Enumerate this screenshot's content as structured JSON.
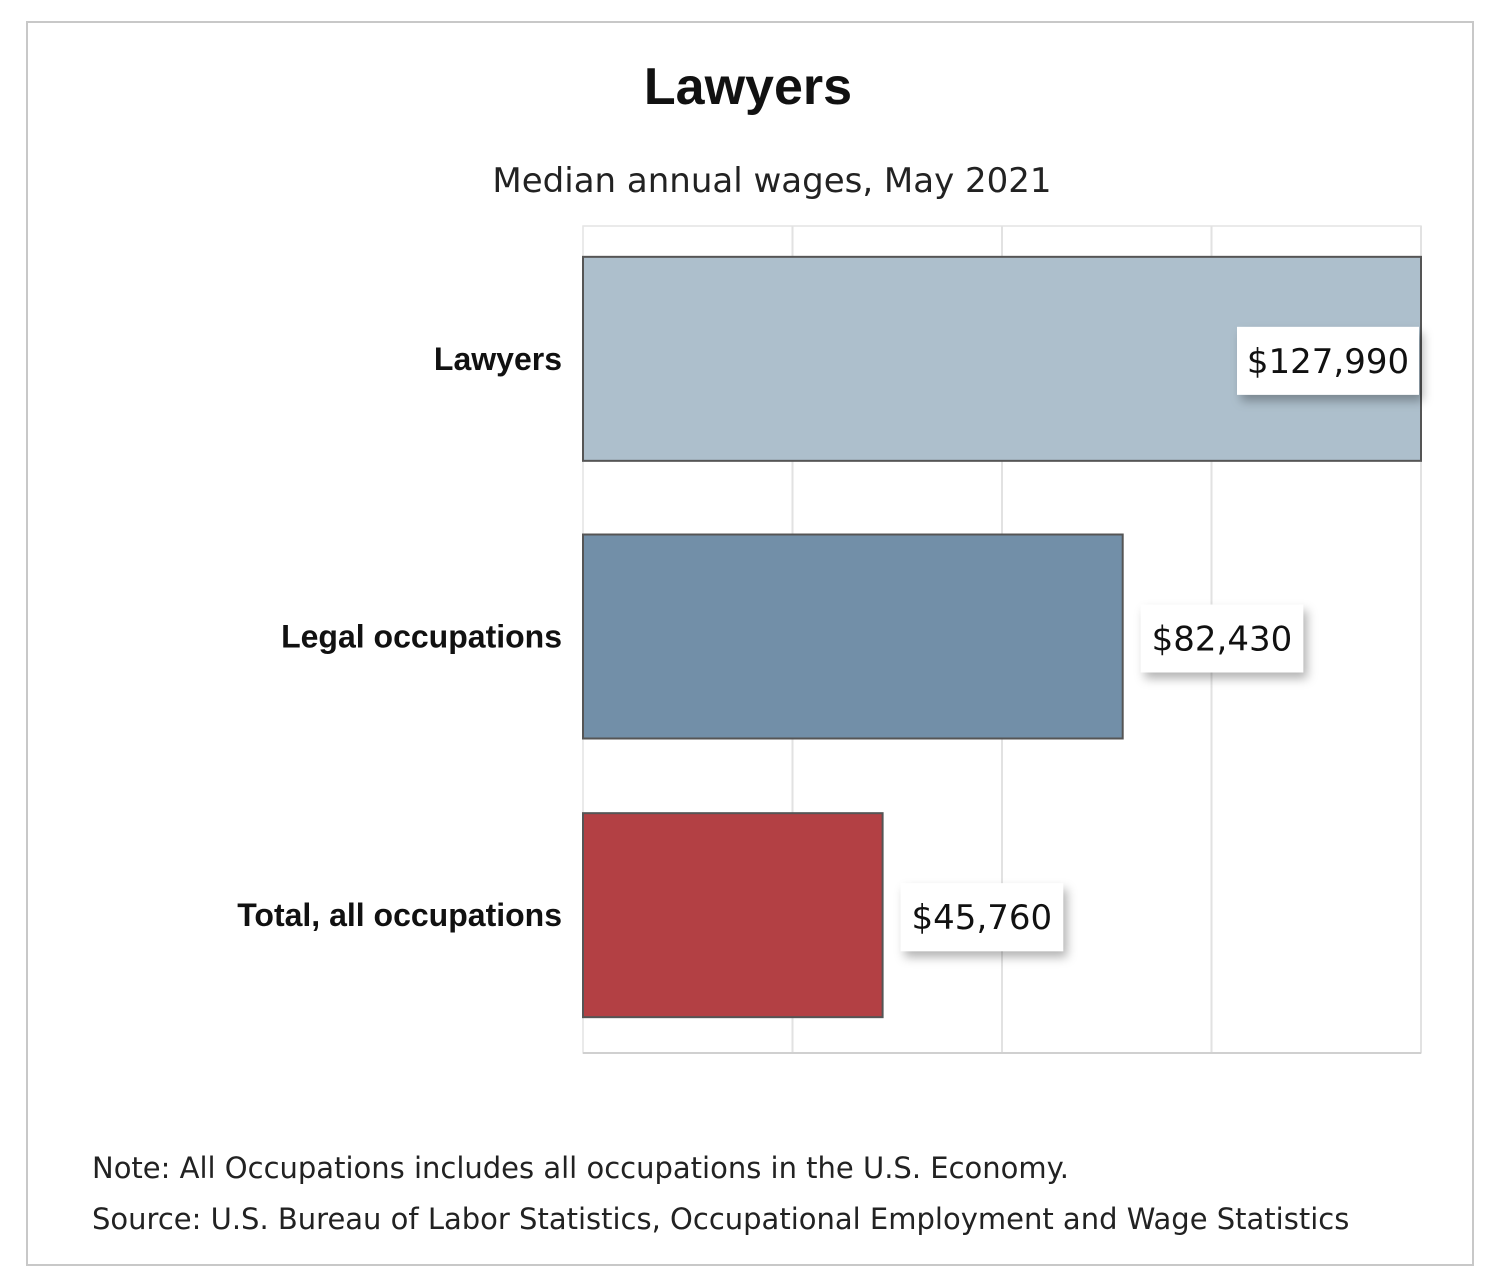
{
  "chart_data": {
    "type": "bar",
    "orientation": "horizontal",
    "title": "Lawyers",
    "subtitle": "Median annual wages, May 2021",
    "categories": [
      "Lawyers",
      "Legal occupations",
      "Total, all occupations"
    ],
    "values": [
      127990,
      82430,
      45760
    ],
    "data_labels": [
      "$127,990",
      "$82,430",
      "$45,760"
    ],
    "colors": [
      "#adbfcc",
      "#728fa8",
      "#b34044"
    ],
    "xlim": [
      0,
      127990
    ],
    "grid": true,
    "legend": "none",
    "xlabel": "",
    "ylabel": ""
  },
  "notes": {
    "note": "Note: All Occupations includes all occupations in the U.S. Economy.",
    "source": "Source: U.S. Bureau of Labor Statistics, Occupational Employment and Wage Statistics"
  }
}
